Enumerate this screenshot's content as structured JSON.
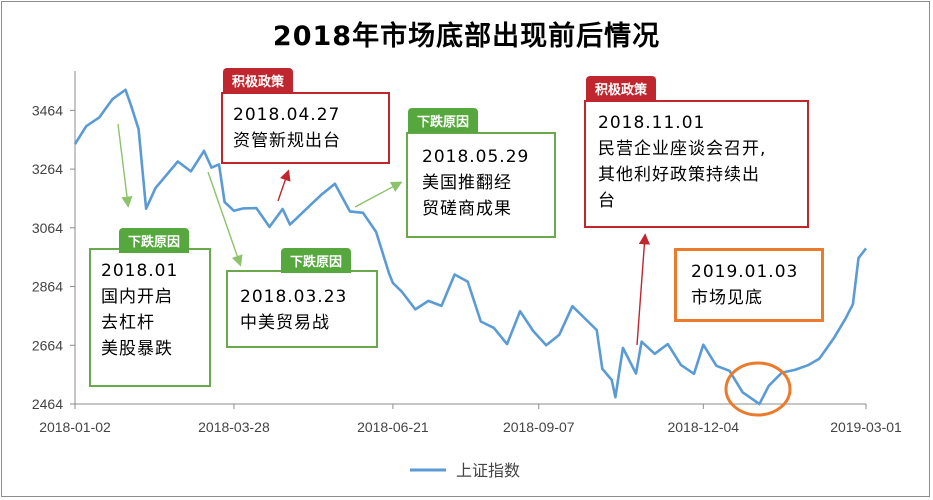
{
  "chart_data": {
    "type": "line",
    "title": "2018年市场底部出现前后情况",
    "xlabel": "",
    "ylabel": "",
    "ylim": [
      2464,
      3564
    ],
    "yticks": [
      2464,
      2664,
      2864,
      3064,
      3264,
      3464
    ],
    "xticks": [
      "2018-01-02",
      "2018-03-28",
      "2018-06-21",
      "2018-09-07",
      "2018-12-04",
      "2019-03-01"
    ],
    "legend": "bottom",
    "line_color": "#5b9bd5",
    "series": [
      {
        "name": "上证指数",
        "x": [
          "2018-01-02",
          "2018-01-08",
          "2018-01-15",
          "2018-01-22",
          "2018-01-29",
          "2018-02-01",
          "2018-02-05",
          "2018-02-09",
          "2018-02-14",
          "2018-02-26",
          "2018-03-05",
          "2018-03-12",
          "2018-03-16",
          "2018-03-20",
          "2018-03-23",
          "2018-03-28",
          "2018-04-02",
          "2018-04-09",
          "2018-04-16",
          "2018-04-23",
          "2018-04-27",
          "2018-05-07",
          "2018-05-14",
          "2018-05-21",
          "2018-05-29",
          "2018-06-05",
          "2018-06-12",
          "2018-06-19",
          "2018-06-21",
          "2018-06-26",
          "2018-07-03",
          "2018-07-10",
          "2018-07-17",
          "2018-07-24",
          "2018-07-31",
          "2018-08-07",
          "2018-08-14",
          "2018-08-21",
          "2018-08-28",
          "2018-09-04",
          "2018-09-11",
          "2018-09-18",
          "2018-09-25",
          "2018-10-08",
          "2018-10-11",
          "2018-10-16",
          "2018-10-18",
          "2018-10-22",
          "2018-10-29",
          "2018-11-01",
          "2018-11-08",
          "2018-11-15",
          "2018-11-22",
          "2018-11-29",
          "2018-12-04",
          "2018-12-11",
          "2018-12-18",
          "2018-12-25",
          "2019-01-03",
          "2019-01-08",
          "2019-01-15",
          "2019-01-22",
          "2019-01-29",
          "2019-02-04",
          "2019-02-12",
          "2019-02-18",
          "2019-02-22",
          "2019-02-25",
          "2019-03-01"
        ],
        "values": [
          3349,
          3410,
          3440,
          3502,
          3534,
          3480,
          3400,
          3129,
          3199,
          3290,
          3256,
          3326,
          3269,
          3280,
          3152,
          3122,
          3130,
          3131,
          3067,
          3128,
          3075,
          3136,
          3178,
          3214,
          3120,
          3115,
          3050,
          2907,
          2876,
          2845,
          2786,
          2815,
          2798,
          2905,
          2881,
          2745,
          2723,
          2668,
          2780,
          2713,
          2664,
          2700,
          2797,
          2716,
          2584,
          2546,
          2487,
          2655,
          2568,
          2676,
          2635,
          2668,
          2597,
          2567,
          2666,
          2594,
          2577,
          2504,
          2464,
          2526,
          2571,
          2580,
          2596,
          2618,
          2690,
          2754,
          2804,
          2961,
          2994
        ]
      }
    ]
  },
  "annotations": [
    {
      "kind": "green",
      "tag": "下跌原因",
      "lines": [
        "2018.01",
        "国内开启",
        "去杠杆",
        "美股暴跌"
      ]
    },
    {
      "kind": "red",
      "tag": "积极政策",
      "lines": [
        "2018.04.27",
        "资管新规出台"
      ]
    },
    {
      "kind": "green",
      "tag": "下跌原因",
      "lines": [
        "2018.03.23",
        "中美贸易战"
      ]
    },
    {
      "kind": "green",
      "tag": "下跌原因",
      "lines": [
        "2018.05.29",
        "美国推翻经",
        "贸磋商成果"
      ]
    },
    {
      "kind": "red",
      "tag": "积极政策",
      "lines": [
        "2018.11.01",
        "民营企业座谈会召开,",
        "其他利好政策持续出",
        "台"
      ]
    },
    {
      "kind": "orange",
      "tag": "",
      "lines": [
        "2019.01.03",
        "市场见底"
      ]
    }
  ],
  "colors": {
    "line": "#5b9bd5",
    "green_border": "#6aa84f",
    "green_tag": "#56a83e",
    "red": "#c0262d",
    "orange": "#ec7a2c",
    "green_arrow": "#8cc26a",
    "red_arrow": "#c0262d"
  }
}
